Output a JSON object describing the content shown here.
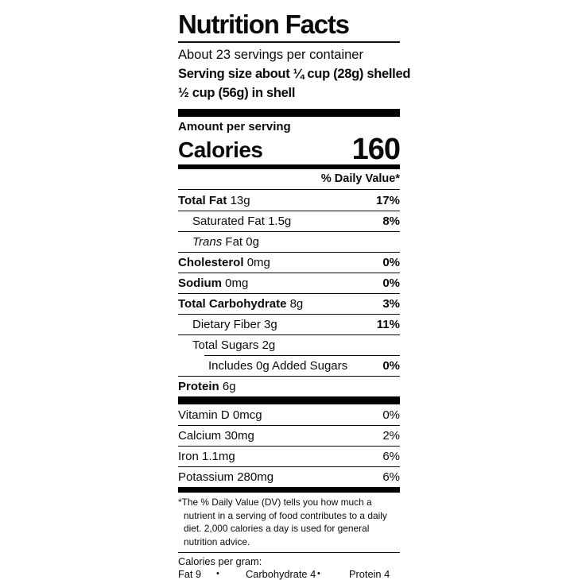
{
  "colors": {
    "ink": "#0a0a0a",
    "bar": "#000000",
    "background": "#ffffff"
  },
  "label": {
    "title": "Nutrition Facts",
    "servings_per_container": "About 23 servings per container",
    "serving_size_line1": "Serving size about ¼ cup (28g) shelled",
    "serving_size_line2": "½ cup (56g) in shell",
    "amount_per_serving": "Amount per serving",
    "calories_label": "Calories",
    "calories_value": "160",
    "daily_value_header": "% Daily Value*",
    "nutrients": [
      {
        "name": "Total Fat",
        "amount": "13g",
        "dv": "17%"
      },
      {
        "name": "Saturated Fat",
        "amount": "1.5g",
        "dv": "8%"
      },
      {
        "name_italic": "Trans",
        "name": "Fat",
        "amount": "0g",
        "dv": ""
      },
      {
        "name": "Cholesterol",
        "amount": "0mg",
        "dv": "0%"
      },
      {
        "name": "Sodium",
        "amount": "0mg",
        "dv": "0%"
      },
      {
        "name": "Total Carbohydrate",
        "amount": "8g",
        "dv": "3%"
      },
      {
        "name": "Dietary Fiber",
        "amount": "3g",
        "dv": "11%"
      },
      {
        "name": "Total Sugars",
        "amount": "2g",
        "dv": ""
      },
      {
        "name": "Includes 0g Added Sugars",
        "amount": "",
        "dv": "0%"
      },
      {
        "name": "Protein",
        "amount": "6g",
        "dv": ""
      }
    ],
    "vitamins": [
      {
        "name": "Vitamin D 0mcg",
        "dv": "0%"
      },
      {
        "name": "Calcium 30mg",
        "dv": "2%"
      },
      {
        "name": "Iron 1.1mg",
        "dv": "6%"
      },
      {
        "name": "Potassium 280mg",
        "dv": "6%"
      }
    ],
    "footnote": "*The % Daily Value (DV) tells you how much a nutrient in a serving of food contributes to a daily diet. 2,000 calories a day is used for general nutrition advice.",
    "calories_per_gram": {
      "heading": "Calories per gram:",
      "items": [
        "Fat 9",
        "Carbohydrate 4",
        "Protein 4"
      ],
      "separator": "•"
    }
  }
}
